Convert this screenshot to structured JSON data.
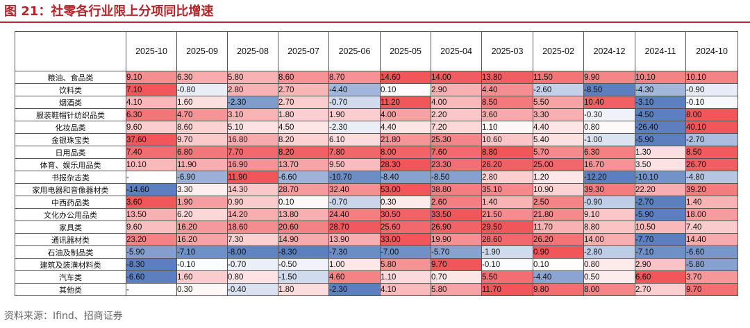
{
  "figure": {
    "title": "图 21：社零各行业限上分项同比增速",
    "source": "资料来源：Ifind、招商证券"
  },
  "chart_data": {
    "type": "table",
    "title": "图 21：社零各行业限上分项同比增速",
    "columns": [
      "2025-10",
      "2025-09",
      "2025-08",
      "2025-07",
      "2025-06",
      "2025-05",
      "2025-04",
      "2025-03",
      "2025-02",
      "2024-12",
      "2024-11",
      "2024-10"
    ],
    "rows": [
      {
        "label": "粮油、食品类",
        "values": [
          "9.10",
          "6.30",
          "5.80",
          "8.60",
          "8.70",
          "14.60",
          "14.00",
          "13.80",
          "11.50",
          "9.90",
          "10.10",
          "10.10"
        ]
      },
      {
        "label": "饮料类",
        "values": [
          "7.10",
          "-0.80",
          "2.80",
          "2.70",
          "-4.40",
          "0.10",
          "2.90",
          "4.40",
          "-2.60",
          "-8.50",
          "-4.30",
          "-0.90"
        ]
      },
      {
        "label": "烟酒类",
        "values": [
          "4.10",
          "1.60",
          "-2.30",
          "2.70",
          "-0.70",
          "11.20",
          "4.00",
          "8.50",
          "5.50",
          "10.40",
          "-3.10",
          "-0.10"
        ]
      },
      {
        "label": "服装鞋帽针纺织品类",
        "values": [
          "6.30",
          "4.70",
          "3.10",
          "1.80",
          "1.90",
          "4.00",
          "2.20",
          "3.60",
          "3.30",
          "-0.30",
          "-4.50",
          "8.00"
        ]
      },
      {
        "label": "化妆品类",
        "values": [
          "9.60",
          "8.60",
          "5.10",
          "4.50",
          "-2.30",
          "4.40",
          "7.20",
          "1.10",
          "4.40",
          "0.80",
          "-26.40",
          "40.10"
        ]
      },
      {
        "label": "金银珠宝类",
        "values": [
          "37.60",
          "9.70",
          "16.80",
          "8.20",
          "6.10",
          "21.80",
          "25.30",
          "10.60",
          "5.40",
          "-1.00",
          "-5.90",
          "-2.70"
        ]
      },
      {
        "label": "日用品类",
        "values": [
          "7.40",
          "6.80",
          "7.70",
          "8.20",
          "7.80",
          "8.00",
          "7.60",
          "8.80",
          "5.70",
          "6.30",
          "1.30",
          "8.50"
        ]
      },
      {
        "label": "体育、娱乐用品类",
        "values": [
          "10.10",
          "11.90",
          "16.90",
          "13.70",
          "9.50",
          "28.30",
          "23.30",
          "26.20",
          "25.00",
          "16.70",
          "3.50",
          "26.70"
        ]
      },
      {
        "label": "书报杂志类",
        "values": [
          "-",
          "-6.90",
          "11.90",
          "-6.60",
          "-10.70",
          "-8.40",
          "-8.50",
          "2.80",
          "1.20",
          "-12.20",
          "-10.10",
          "-4.80"
        ]
      },
      {
        "label": "家用电器和音像器材类",
        "values": [
          "-14.60",
          "3.30",
          "14.30",
          "28.70",
          "32.40",
          "53.00",
          "38.80",
          "35.10",
          "10.90",
          "39.30",
          "22.20",
          "39.20"
        ]
      },
      {
        "label": "中西药品类",
        "values": [
          "3.60",
          "1.90",
          "0.90",
          "0.10",
          "-0.70",
          "0.30",
          "2.60",
          "1.40",
          "2.50",
          "-0.90",
          "-2.70",
          "1.40"
        ]
      },
      {
        "label": "文化办公用品类",
        "values": [
          "13.50",
          "6.20",
          "14.20",
          "13.80",
          "24.40",
          "30.50",
          "33.50",
          "21.50",
          "21.80",
          "9.10",
          "-5.90",
          "18.00"
        ]
      },
      {
        "label": "家具类",
        "values": [
          "9.60",
          "16.20",
          "18.60",
          "20.60",
          "28.70",
          "25.60",
          "26.90",
          "29.50",
          "11.70",
          "8.80",
          "10.50",
          "7.40"
        ]
      },
      {
        "label": "通讯器材类",
        "values": [
          "23.20",
          "16.20",
          "7.30",
          "14.90",
          "13.90",
          "33.00",
          "19.90",
          "28.60",
          "26.20",
          "14.00",
          "-7.70",
          "14.40"
        ]
      },
      {
        "label": "石油及制品类",
        "values": [
          "-5.90",
          "-7.10",
          "-8.00",
          "-8.30",
          "-7.30",
          "-7.00",
          "-5.70",
          "-1.90",
          "0.90",
          "-2.80",
          "-7.10",
          "-6.60"
        ]
      },
      {
        "label": "建筑及装潢材料类",
        "values": [
          "-8.30",
          "-0.10",
          "-0.70",
          "-0.50",
          "1.00",
          "5.80",
          "9.70",
          "-0.10",
          "0.10",
          "0.80",
          "2.90",
          "-5.80"
        ]
      },
      {
        "label": "汽车类",
        "values": [
          "-6.60",
          "1.60",
          "0.80",
          "-1.50",
          "4.60",
          "1.10",
          "0.70",
          "5.50",
          "-4.40",
          "0.50",
          "6.60",
          "3.70"
        ]
      },
      {
        "label": "其他类",
        "values": [
          "-",
          "0.30",
          "-0.40",
          "1.80",
          "-2.30",
          "4.10",
          "5.80",
          "11.70",
          "9.80",
          "8.00",
          "2.70",
          "9.70"
        ]
      }
    ],
    "colors": {
      "negative": "#5b7fbf",
      "neutral": "#ffffff",
      "positive": "#f0565a"
    }
  }
}
